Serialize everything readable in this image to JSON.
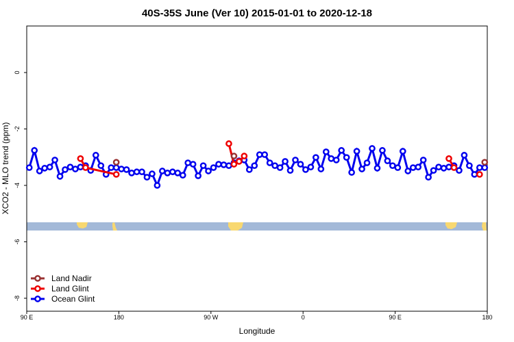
{
  "chart_data": {
    "type": "line",
    "title": "40S-35S June (Ver 10)   2015-01-01 to 2020-12-18",
    "xlabel": "Longitude",
    "ylabel": "XCO2 - MLO trend (ppm)",
    "xlim": [
      90,
      540
    ],
    "ylim": [
      -8.46,
      1.65
    ],
    "xticks": [
      {
        "value": 90,
        "label": "90 E"
      },
      {
        "value": 180,
        "label": "180"
      },
      {
        "value": 270,
        "label": "90 W"
      },
      {
        "value": 360,
        "label": "0"
      },
      {
        "value": 450,
        "label": "90 E"
      },
      {
        "value": 540,
        "label": "180"
      }
    ],
    "yticks": [
      0,
      -2,
      -4,
      -6,
      -8
    ],
    "legend": "bottomleft",
    "series": [
      {
        "name": "Land Nadir",
        "color": "#993333",
        "x": [
          177.5,
          null,
          292.5,
          null,
          537.5
        ],
        "values": [
          -3.18,
          null,
          -2.96,
          null,
          -3.18
        ]
      },
      {
        "name": "Land Glint",
        "color": "#ee0000",
        "x": [
          142.5,
          147.5,
          177.5,
          null,
          287.5,
          292.5,
          297.5,
          302.5,
          null,
          502.5,
          507.5,
          null,
          532.5
        ],
        "values": [
          -3.05,
          -3.37,
          -3.61,
          null,
          -2.52,
          -3.25,
          -3.15,
          -2.96,
          null,
          -3.05,
          -3.37,
          null,
          -3.61
        ]
      },
      {
        "name": "Ocean Glint",
        "color": "#0000ee",
        "x": [
          92.5,
          97.5,
          102.5,
          107.5,
          112.5,
          117.5,
          122.5,
          127.5,
          132.5,
          137.5,
          142.5,
          147.5,
          152.5,
          157.5,
          162.5,
          167.5,
          172.5,
          177.5,
          182.5,
          187.5,
          192.5,
          197.5,
          202.5,
          207.5,
          212.5,
          217.5,
          222.5,
          227.5,
          232.5,
          237.5,
          242.5,
          247.5,
          252.5,
          257.5,
          262.5,
          267.5,
          272.5,
          277.5,
          282.5,
          287.5,
          292.5,
          297.5,
          302.5,
          307.5,
          312.5,
          317.5,
          322.5,
          327.5,
          332.5,
          337.5,
          342.5,
          347.5,
          352.5,
          357.5,
          362.5,
          367.5,
          372.5,
          377.5,
          382.5,
          387.5,
          392.5,
          397.5,
          402.5,
          407.5,
          412.5,
          417.5,
          422.5,
          427.5,
          432.5,
          437.5,
          442.5,
          447.5,
          452.5,
          457.5,
          462.5,
          467.5,
          472.5,
          477.5,
          482.5,
          487.5,
          492.5,
          497.5,
          502.5,
          507.5,
          512.5,
          517.5,
          522.5,
          527.5,
          532.5,
          537.5
        ],
        "values": [
          -3.37,
          -2.76,
          -3.49,
          -3.39,
          -3.35,
          -3.1,
          -3.68,
          -3.44,
          -3.35,
          -3.42,
          -3.35,
          -3.3,
          -3.47,
          -2.93,
          -3.3,
          -3.61,
          -3.37,
          -3.37,
          -3.42,
          -3.44,
          -3.56,
          -3.52,
          -3.52,
          -3.71,
          -3.59,
          -4.0,
          -3.49,
          -3.56,
          -3.52,
          -3.56,
          -3.64,
          -3.2,
          -3.25,
          -3.66,
          -3.3,
          -3.49,
          -3.37,
          -3.25,
          -3.27,
          -3.3,
          -3.2,
          -3.13,
          -3.1,
          -3.44,
          -3.3,
          -2.91,
          -2.91,
          -3.2,
          -3.3,
          -3.37,
          -3.15,
          -3.47,
          -3.1,
          -3.25,
          -3.44,
          -3.35,
          -3.01,
          -3.42,
          -2.81,
          -3.05,
          -3.1,
          -2.76,
          -3.01,
          -3.54,
          -2.79,
          -3.42,
          -3.2,
          -2.69,
          -3.39,
          -2.76,
          -3.13,
          -3.3,
          -3.37,
          -2.79,
          -3.49,
          -3.37,
          -3.35,
          -3.1,
          -3.71,
          -3.47,
          -3.35,
          -3.39,
          -3.35,
          -3.3,
          -3.47,
          -2.93,
          -3.3,
          -3.61,
          -3.37,
          -3.37
        ]
      }
    ]
  }
}
